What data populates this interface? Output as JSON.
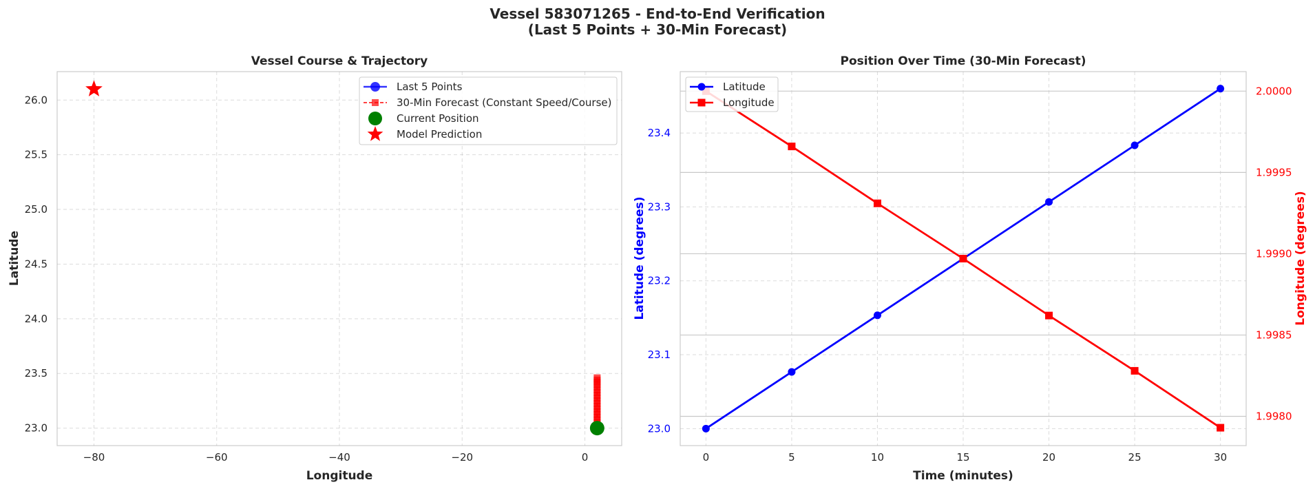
{
  "figure": {
    "title_line1": "Vessel 583071265 - End-to-End Verification",
    "title_line2": "(Last 5 Points + 30-Min Forecast)"
  },
  "colors": {
    "last5": "#0000ff",
    "forecast": "#ff0000",
    "current": "#008000",
    "prediction": "#ff0000",
    "latitude": "#0000ff",
    "longitude": "#ff0000"
  },
  "chart_data": [
    {
      "type": "scatter",
      "title": "Vessel Course & Trajectory",
      "xlabel": "Longitude",
      "ylabel": "Latitude",
      "xlim": [
        -86,
        6
      ],
      "ylim": [
        22.84,
        26.26
      ],
      "xticks": [
        -80,
        -60,
        -40,
        -20,
        0
      ],
      "xtick_labels": [
        "−80",
        "−60",
        "−40",
        "−20",
        "0"
      ],
      "yticks": [
        23.0,
        23.5,
        24.0,
        24.5,
        25.0,
        25.5,
        26.0
      ],
      "ytick_labels": [
        "23.0",
        "23.5",
        "24.0",
        "24.5",
        "25.0",
        "25.5",
        "26.0"
      ],
      "grid": true,
      "legend": "top-right",
      "series": [
        {
          "name": "Last 5 Points",
          "style": "line-circle",
          "x": [
            2.0
          ],
          "y": [
            23.0
          ]
        },
        {
          "name": "30-Min Forecast (Constant Speed/Course)",
          "style": "dashed-square",
          "x": [
            2.0,
            2.0,
            2.0,
            2.0,
            2.0,
            2.0,
            2.0,
            2.0,
            2.0,
            2.0,
            2.0,
            2.0,
            2.0,
            2.0,
            2.0,
            2.0,
            2.0,
            2.0,
            2.0,
            2.0
          ],
          "y": [
            23.0,
            23.025,
            23.05,
            23.075,
            23.1,
            23.125,
            23.15,
            23.175,
            23.2,
            23.225,
            23.25,
            23.275,
            23.3,
            23.325,
            23.35,
            23.375,
            23.4,
            23.42,
            23.44,
            23.46
          ]
        },
        {
          "name": "Current Position",
          "style": "big-circle",
          "x": [
            2.0
          ],
          "y": [
            23.0
          ]
        },
        {
          "name": "Model Prediction",
          "style": "star",
          "x": [
            -80.0
          ],
          "y": [
            26.1
          ]
        }
      ]
    },
    {
      "type": "line",
      "title": "Position Over Time (30-Min Forecast)",
      "xlabel": "Time (minutes)",
      "ylabel_left": "Latitude (degrees)",
      "ylabel_right": "Longitude (degrees)",
      "xlim": [
        -1.5,
        31.5
      ],
      "ylim_left": [
        22.977,
        23.483
      ],
      "ylim_right": [
        1.99782,
        2.00012
      ],
      "xticks": [
        0,
        5,
        10,
        15,
        20,
        25,
        30
      ],
      "xtick_labels": [
        "0",
        "5",
        "10",
        "15",
        "20",
        "25",
        "30"
      ],
      "yticks_left": [
        23.0,
        23.1,
        23.2,
        23.3,
        23.4
      ],
      "ytick_labels_left": [
        "23.0",
        "23.1",
        "23.2",
        "23.3",
        "23.4"
      ],
      "yticks_right": [
        1.998,
        1.9985,
        1.999,
        1.9995,
        2.0
      ],
      "ytick_labels_right": [
        "1.9980",
        "1.9985",
        "1.9990",
        "1.9995",
        "2.0000"
      ],
      "grid": true,
      "legend": "top-left",
      "x": [
        0,
        5,
        10,
        15,
        20,
        25,
        30
      ],
      "series": [
        {
          "name": "Latitude",
          "axis": "left",
          "values": [
            23.0,
            23.0767,
            23.1533,
            23.23,
            23.3067,
            23.3833,
            23.46
          ]
        },
        {
          "name": "Longitude",
          "axis": "right",
          "values": [
            2.0,
            1.99966,
            1.99931,
            1.99897,
            1.99862,
            1.99828,
            1.99793
          ]
        }
      ]
    }
  ]
}
